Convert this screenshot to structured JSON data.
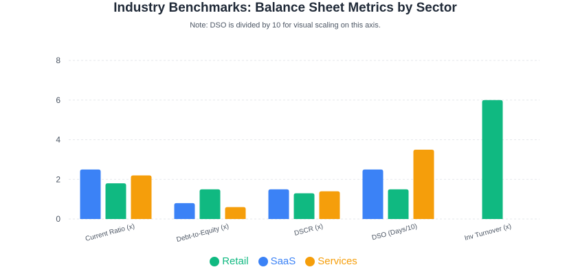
{
  "title": "Industry Benchmarks: Balance Sheet Metrics by Sector",
  "subtitle": "Note: DSO is divided by 10 for visual scaling on this axis.",
  "chart_data": {
    "type": "bar",
    "categories": [
      "Current Ratio (x)",
      "Debt-to-Equity (x)",
      "DSCR (x)",
      "DSO (Days/10)",
      "Inv Turnover (x)"
    ],
    "series": [
      {
        "name": "SaaS",
        "color": "#3b82f6",
        "values": [
          2.5,
          0.8,
          1.5,
          2.5,
          0
        ]
      },
      {
        "name": "Retail",
        "color": "#10b981",
        "values": [
          1.8,
          1.5,
          1.3,
          1.5,
          6.0
        ]
      },
      {
        "name": "Services",
        "color": "#f59e0b",
        "values": [
          2.2,
          0.6,
          1.4,
          3.5,
          0
        ]
      }
    ],
    "ylim": [
      0,
      8
    ],
    "yticks": [
      0,
      2,
      4,
      6,
      8
    ],
    "grid": true,
    "legend": {
      "position": "bottom",
      "order": [
        {
          "name": "Retail",
          "color": "#10b981"
        },
        {
          "name": "SaaS",
          "color": "#3b82f6"
        },
        {
          "name": "Services",
          "color": "#f59e0b"
        }
      ]
    }
  }
}
